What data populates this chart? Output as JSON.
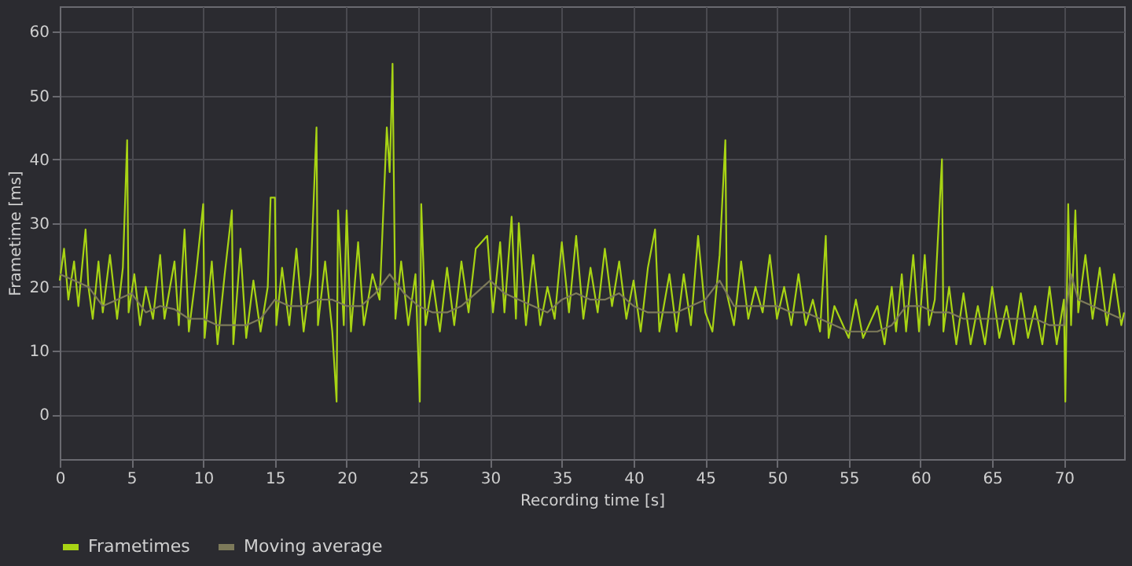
{
  "chart_data": {
    "type": "line",
    "xlabel": "Recording time [s]",
    "ylabel": "Frametime [ms]",
    "xlim": [
      0,
      74.2
    ],
    "ylim": [
      -7,
      64
    ],
    "xticks": [
      0,
      5,
      10,
      15,
      20,
      25,
      30,
      35,
      40,
      45,
      50,
      55,
      60,
      65,
      70
    ],
    "yticks": [
      0,
      10,
      20,
      30,
      40,
      50,
      60
    ],
    "grid": true,
    "legend": "bottom",
    "line_style": "solid",
    "series": [
      {
        "name": "Frametimes",
        "color": "#a8d414",
        "x": [
          0,
          0.3,
          0.6,
          1,
          1.3,
          1.8,
          2,
          2.3,
          2.7,
          3,
          3.5,
          4,
          4.4,
          4.7,
          4.8,
          5.2,
          5.6,
          6,
          6.5,
          7,
          7.3,
          8,
          8.3,
          8.7,
          9,
          9.5,
          10,
          10.1,
          10.6,
          11,
          11.5,
          12,
          12.1,
          12.6,
          13,
          13.5,
          14,
          14.5,
          14.7,
          15,
          15.1,
          15.5,
          16,
          16.5,
          17,
          17.5,
          17.9,
          18,
          18.5,
          19,
          19.3,
          19.4,
          19.8,
          20,
          20.3,
          20.8,
          21.2,
          21.8,
          22.3,
          22.8,
          23,
          23.1,
          23.2,
          23.4,
          23.8,
          24.3,
          24.8,
          25.1,
          25.2,
          25.5,
          26,
          26.5,
          27,
          27.5,
          28,
          28.5,
          29,
          29.8,
          30.2,
          30.7,
          31,
          31.5,
          31.8,
          32,
          32.5,
          33,
          33.5,
          34,
          34.5,
          35,
          35.5,
          36,
          36.5,
          37,
          37.5,
          38,
          38.5,
          39,
          39.5,
          40,
          40.5,
          41,
          41.5,
          41.8,
          42.5,
          43,
          43.5,
          44,
          44.5,
          45,
          45.5,
          46,
          46.4,
          46.5,
          47,
          47.5,
          48,
          48.5,
          49,
          49.5,
          50,
          50.5,
          51,
          51.5,
          52,
          52.5,
          53,
          53.4,
          53.6,
          54,
          55,
          55.5,
          56,
          57,
          57.5,
          58,
          58.3,
          58.7,
          59,
          59.5,
          59.9,
          60.3,
          60.6,
          61,
          61.5,
          61.6,
          62,
          62.5,
          63,
          63.5,
          64,
          64.5,
          65,
          65.5,
          66,
          66.5,
          67,
          67.5,
          68,
          68.5,
          69,
          69.5,
          70,
          70.1,
          70.3,
          70.5,
          70.8,
          71,
          71.5,
          72,
          72.5,
          73,
          73.5,
          74,
          74.2
        ],
        "values": [
          21,
          26,
          18,
          24,
          17,
          29,
          20,
          15,
          24,
          16,
          25,
          15,
          23,
          43,
          16,
          22,
          14,
          20,
          15,
          25,
          15,
          24,
          14,
          29,
          13,
          22,
          33,
          12,
          24,
          11,
          22,
          32,
          11,
          26,
          12,
          21,
          13,
          20,
          34,
          34,
          14,
          23,
          14,
          26,
          13,
          22,
          45,
          14,
          24,
          13,
          2,
          32,
          14,
          32,
          13,
          27,
          14,
          22,
          18,
          45,
          38,
          46,
          55,
          15,
          24,
          14,
          22,
          2,
          33,
          14,
          21,
          13,
          23,
          14,
          24,
          16,
          26,
          28,
          16,
          27,
          16,
          31,
          15,
          30,
          14,
          25,
          14,
          20,
          15,
          27,
          16,
          28,
          15,
          23,
          16,
          26,
          17,
          24,
          15,
          21,
          13,
          23,
          29,
          13,
          22,
          13,
          22,
          14,
          28,
          16,
          13,
          25,
          43,
          19,
          14,
          24,
          15,
          20,
          16,
          25,
          15,
          20,
          14,
          22,
          14,
          18,
          13,
          28,
          12,
          17,
          12,
          18,
          12,
          17,
          11,
          20,
          13,
          22,
          13,
          25,
          13,
          25,
          14,
          18,
          40,
          13,
          20,
          11,
          19,
          11,
          17,
          11,
          20,
          12,
          17,
          11,
          19,
          12,
          17,
          11,
          20,
          11,
          18,
          2,
          33,
          14,
          32,
          16,
          25,
          15,
          23,
          14,
          22,
          14,
          16
        ]
      },
      {
        "name": "Moving average",
        "color": "#7d7a5a",
        "x": [
          0,
          1,
          2,
          3,
          4,
          5,
          6,
          7,
          8,
          9,
          10,
          11,
          12,
          13,
          14,
          15,
          16,
          17,
          18,
          19,
          20,
          21,
          22,
          23,
          24,
          25,
          26,
          27,
          28,
          29,
          30,
          31,
          32,
          33,
          34,
          35,
          36,
          37,
          38,
          39,
          40,
          41,
          42,
          43,
          44,
          45,
          46,
          47,
          48,
          49,
          50,
          51,
          52,
          53,
          54,
          55,
          56,
          57,
          58,
          59,
          60,
          61,
          62,
          63,
          64,
          65,
          66,
          67,
          68,
          69,
          70,
          70.5,
          71,
          72,
          73,
          74
        ],
        "values": [
          22,
          21,
          20,
          17,
          18,
          19,
          16,
          17,
          16.5,
          15,
          15,
          14,
          14,
          14,
          15,
          18,
          17,
          17,
          18,
          18,
          17,
          17,
          19,
          22,
          19,
          17,
          16,
          16,
          17,
          19,
          21,
          19,
          18,
          17,
          16,
          18,
          19,
          18,
          18,
          19,
          17,
          16,
          16,
          16,
          17,
          18,
          21,
          17,
          17,
          17,
          17,
          16,
          16,
          15,
          14,
          13,
          13,
          13,
          14,
          17,
          17,
          16,
          16,
          15,
          15,
          15,
          15,
          15,
          15,
          14,
          14,
          22,
          18,
          17,
          16,
          15
        ]
      }
    ]
  }
}
